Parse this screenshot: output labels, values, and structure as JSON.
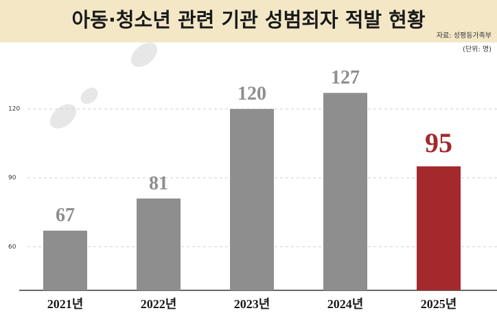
{
  "chart_data": {
    "type": "bar",
    "title": "아동·청소년 관련 기관 성범죄자 적발 현황",
    "source": "자료: 성평등가족부",
    "unit": "(단위: 명)",
    "categories": [
      "2021년",
      "2022년",
      "2023년",
      "2024년",
      "2025년"
    ],
    "values": [
      67,
      81,
      120,
      127,
      95
    ],
    "colors": [
      "#8e8e8e",
      "#8e8e8e",
      "#8e8e8e",
      "#8e8e8e",
      "#a4292c"
    ],
    "ylim": [
      41,
      143
    ],
    "yticks": [
      60,
      90,
      120
    ],
    "grid": true
  }
}
